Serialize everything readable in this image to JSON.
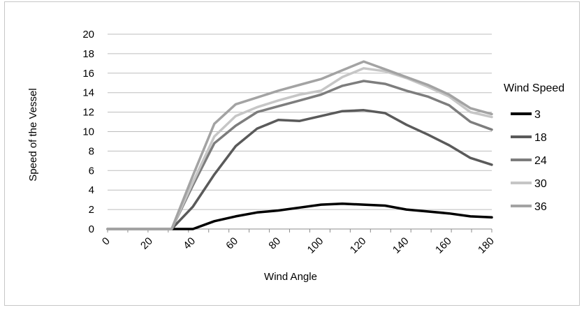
{
  "chart_data": {
    "type": "line",
    "xlabel": "Wind Angle",
    "ylabel": "Speed of the Vessel",
    "ylim": [
      0,
      20
    ],
    "yticks": [
      "0",
      "2",
      "4",
      "6",
      "8",
      "10",
      "12",
      "14",
      "16",
      "18",
      "20"
    ],
    "xlim": [
      0,
      180
    ],
    "xticks": [
      "0",
      "20",
      "40",
      "60",
      "80",
      "100",
      "120",
      "140",
      "160",
      "180"
    ],
    "grid": "horizontal",
    "legend": {
      "title": "Wind Speed",
      "position": "right"
    },
    "x": [
      0,
      10,
      20,
      30,
      40,
      50,
      60,
      70,
      80,
      90,
      100,
      110,
      120,
      130,
      140,
      150,
      160,
      170,
      180
    ],
    "series": [
      {
        "name": "3",
        "color": "#000000",
        "values": [
          0,
          0,
          0,
          0,
          0,
          0.8,
          1.3,
          1.7,
          1.9,
          2.2,
          2.5,
          2.6,
          2.5,
          2.4,
          2.0,
          1.8,
          1.6,
          1.3,
          1.2
        ]
      },
      {
        "name": "18",
        "color": "#5a5a5a",
        "values": [
          0,
          0,
          0,
          0,
          2.3,
          5.6,
          8.5,
          10.3,
          11.2,
          11.1,
          11.6,
          12.1,
          12.2,
          11.9,
          10.7,
          9.7,
          8.6,
          7.3,
          6.6
        ]
      },
      {
        "name": "24",
        "color": "#7d7d7d",
        "values": [
          0,
          0,
          0,
          0,
          4.5,
          8.8,
          10.6,
          12.0,
          12.6,
          13.2,
          13.8,
          14.7,
          15.2,
          14.9,
          14.2,
          13.6,
          12.7,
          11.0,
          10.2
        ]
      },
      {
        "name": "30",
        "color": "#c6c6c6",
        "values": [
          0,
          0,
          0,
          0,
          4.8,
          9.5,
          11.6,
          12.5,
          13.2,
          13.8,
          14.2,
          15.6,
          16.5,
          16.2,
          15.5,
          14.6,
          13.6,
          12.0,
          11.5
        ]
      },
      {
        "name": "36",
        "color": "#a3a3a3",
        "values": [
          0,
          0,
          0,
          0,
          5.5,
          10.8,
          12.8,
          13.5,
          14.2,
          14.8,
          15.4,
          16.3,
          17.2,
          16.4,
          15.6,
          14.8,
          13.8,
          12.4,
          11.8
        ]
      }
    ]
  }
}
